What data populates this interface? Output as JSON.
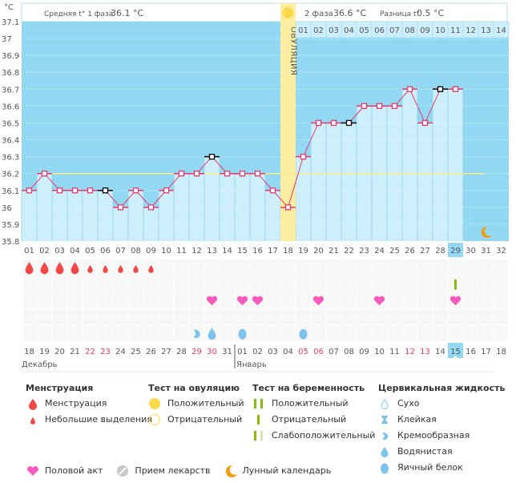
{
  "header": {
    "unit_label": "°C",
    "phase1_label": "Средняя t° 1 фаза",
    "phase1_value": "36.1 °C",
    "phase2_label": "2 фаза",
    "phase2_value": "36.6 °C",
    "diff_label": "Разница t°",
    "diff_value": "0.5 °C",
    "ovulation_label": "ОВУЛЯЦИЯ"
  },
  "chart_data": {
    "type": "line",
    "title": "",
    "ylabel": "°C",
    "ylim": [
      35.8,
      37.1
    ],
    "yticks": [
      "37.1",
      "37",
      "36.9",
      "36.8",
      "36.7",
      "36.6",
      "36.5",
      "36.4",
      "36.3",
      "36.2",
      "36.1",
      "36",
      "35.9",
      "35.8"
    ],
    "cycle_days": [
      "01",
      "02",
      "03",
      "04",
      "05",
      "06",
      "07",
      "08",
      "09",
      "10",
      "11",
      "12",
      "13",
      "14",
      "15",
      "16",
      "17",
      "18",
      "19",
      "20",
      "21",
      "22",
      "23",
      "24",
      "25",
      "26",
      "27",
      "28",
      "29",
      "30",
      "31",
      "32"
    ],
    "post_ovulation_days": [
      "01",
      "02",
      "03",
      "04",
      "05",
      "06",
      "07",
      "08",
      "09",
      "10",
      "11",
      "12",
      "13",
      "14"
    ],
    "temperatures": [
      36.1,
      36.2,
      36.1,
      36.1,
      36.1,
      36.1,
      36.0,
      36.1,
      36.0,
      36.1,
      36.2,
      36.2,
      36.3,
      36.2,
      36.2,
      36.2,
      36.1,
      36.0,
      36.3,
      36.5,
      36.5,
      36.5,
      36.6,
      36.6,
      36.6,
      36.7,
      36.5,
      36.7,
      36.7
    ],
    "excluded_points": [
      6,
      13,
      22,
      28
    ],
    "coverline": 36.2,
    "ovulation_day": 18,
    "today_cycle_day": 29,
    "calendar_dates": [
      "18",
      "19",
      "20",
      "21",
      "22",
      "23",
      "24",
      "25",
      "26",
      "27",
      "28",
      "29",
      "30",
      "31",
      "01",
      "02",
      "03",
      "04",
      "05",
      "06",
      "07",
      "08",
      "09",
      "10",
      "11",
      "12",
      "13",
      "14",
      "15",
      "16",
      "17",
      "18"
    ],
    "weekend_dates_index": [
      4,
      5,
      11,
      12,
      18,
      19,
      25,
      26
    ],
    "months": [
      {
        "label": "Декабрь",
        "start_index": 0
      },
      {
        "label": "Январь",
        "start_index": 14
      }
    ],
    "menstruation": {
      "heavy_days": [
        1,
        2,
        3,
        4
      ],
      "light_days": [
        5,
        6,
        7,
        8,
        9
      ]
    },
    "pregnancy_test_negative_days": [
      29
    ],
    "intercourse_days": [
      13,
      15,
      16,
      20,
      24,
      29
    ],
    "cervical_fluid": [
      {
        "day": 12,
        "type": "creamy"
      },
      {
        "day": 13,
        "type": "watery"
      },
      {
        "day": 15,
        "type": "egg_white"
      },
      {
        "day": 19,
        "type": "egg_white"
      }
    ],
    "moon_day": 31
  },
  "colors": {
    "bg_blue": "#92d8f2",
    "bar_light": "#cdeefb",
    "line": "#e8396a",
    "coverline": "#f6ec8a",
    "ovulation": "#fdeda0",
    "ovulation_dot": "#fdd84c",
    "menstruation": "#f24848",
    "heart": "#f75bbd",
    "cervical": "#7cc3ec",
    "test_green": "#8ab80f",
    "test_green_light": "#d4e6a8",
    "moon": "#f39c12",
    "weekend": "#e8396a"
  },
  "legend": {
    "menstruation": {
      "title": "Менструация",
      "items": [
        "Менструация",
        "Небольшие выделения"
      ]
    },
    "ovulation_test": {
      "title": "Тест на овуляцию",
      "items": [
        "Положительный",
        "Отрицательный"
      ]
    },
    "pregnancy_test": {
      "title": "Тест на беременность",
      "items": [
        "Положительный",
        "Отрицательный",
        "Слабоположительный"
      ]
    },
    "cervical_fluid": {
      "title": "Цервикальная жидкость",
      "items": [
        "Сухо",
        "Клейкая",
        "Кремообразная",
        "Водянистая",
        "Яичный белок"
      ]
    },
    "other": [
      "Половой акт",
      "Прием лекарств",
      "Лунный календарь"
    ]
  }
}
